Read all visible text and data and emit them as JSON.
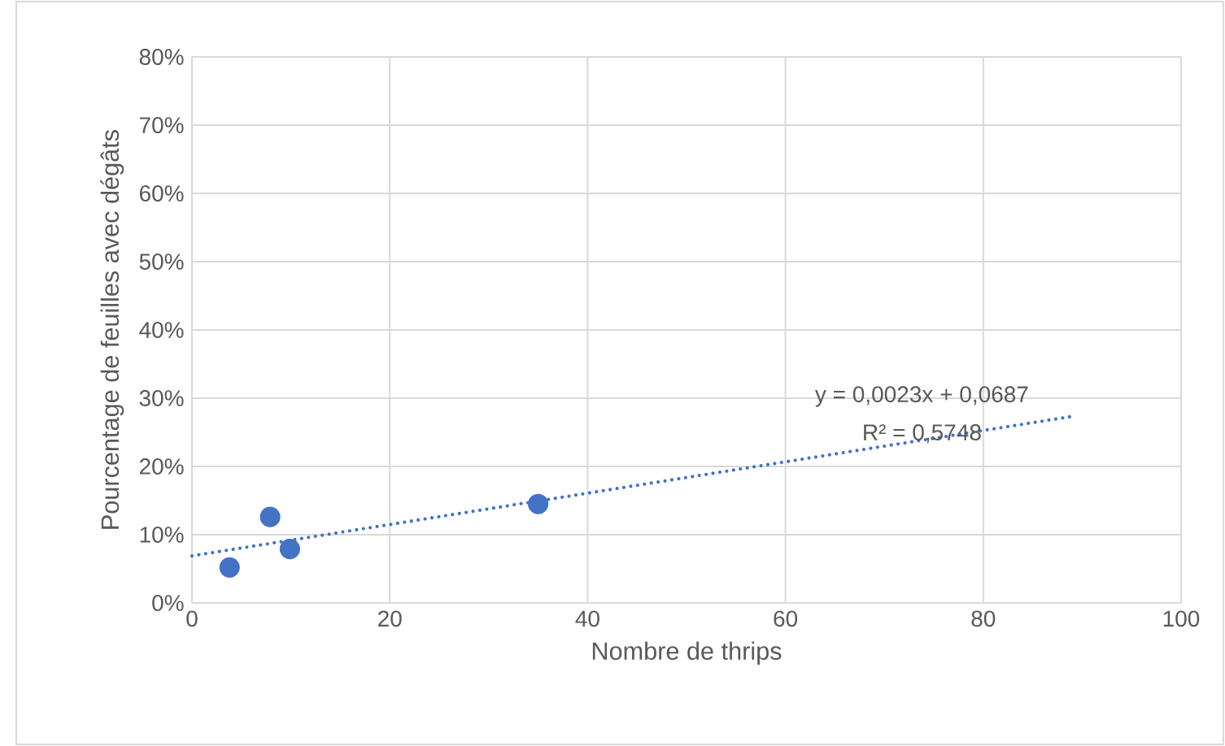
{
  "chart_data": {
    "type": "scatter",
    "xlabel": "Nombre de thrips",
    "ylabel": "Pourcentage de feuilles avec dégâts",
    "xlim": [
      0,
      100
    ],
    "xticks": [
      0,
      20,
      40,
      60,
      80,
      100
    ],
    "ylim": [
      0,
      80
    ],
    "yticks": [
      {
        "value": 0,
        "label": "0%"
      },
      {
        "value": 10,
        "label": "10%"
      },
      {
        "value": 20,
        "label": "20%"
      },
      {
        "value": 30,
        "label": "30%"
      },
      {
        "value": 40,
        "label": "40%"
      },
      {
        "value": 50,
        "label": "50%"
      },
      {
        "value": 60,
        "label": "60%"
      },
      {
        "value": 70,
        "label": "70%"
      },
      {
        "value": 80,
        "label": "80%"
      }
    ],
    "grid": true,
    "series": [
      {
        "x": [
          3.8,
          7.9,
          9.9,
          35
        ],
        "values": [
          5.2,
          12.6,
          7.9,
          14.5
        ],
        "color": "#4472c4",
        "marker": "circle"
      },
      {
        "type": "line",
        "x": [
          0,
          89.3
        ],
        "values": [
          6.9,
          27.4
        ],
        "color": "#4472c4",
        "line_style": "dotted",
        "marker": "none"
      }
    ],
    "annotations": [
      "y = 0,0023x + 0,0687",
      "R² = 0,5748"
    ]
  }
}
